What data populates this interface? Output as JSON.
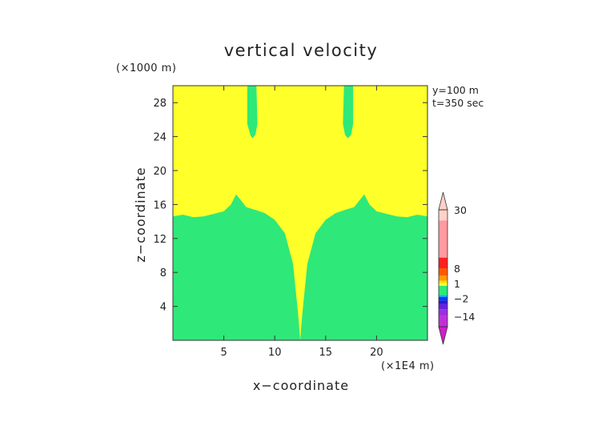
{
  "chart_data": {
    "type": "heatmap",
    "title": "vertical velocity",
    "xlabel": "x−coordinate",
    "ylabel": "z−coordinate",
    "x_unit": "(×1E4 m)",
    "y_unit": "(×1000 m)",
    "xlim": [
      0,
      25
    ],
    "ylim": [
      0,
      30
    ],
    "x_ticks": [
      5,
      10,
      15,
      20
    ],
    "y_ticks": [
      4,
      8,
      12,
      16,
      20,
      24,
      28
    ],
    "annotations": [
      "y=100 m",
      "t=350 sec"
    ],
    "field": {
      "background_color": "#ffff2a",
      "lower_region_color": "#2ee87a",
      "lower_region_top": [
        [
          0.0,
          14.6
        ],
        [
          1.0,
          14.8
        ],
        [
          2.0,
          14.5
        ],
        [
          3.0,
          14.6
        ],
        [
          4.0,
          14.9
        ],
        [
          5.0,
          15.2
        ],
        [
          5.7,
          16.0
        ],
        [
          6.2,
          17.2
        ],
        [
          6.6,
          16.6
        ],
        [
          7.2,
          15.7
        ],
        [
          8.0,
          15.4
        ],
        [
          9.0,
          15.0
        ],
        [
          10.0,
          14.2
        ],
        [
          11.0,
          12.6
        ],
        [
          11.8,
          9.0
        ],
        [
          12.3,
          3.0
        ],
        [
          12.5,
          0.0
        ],
        [
          12.7,
          3.0
        ],
        [
          13.2,
          9.0
        ],
        [
          14.0,
          12.6
        ],
        [
          15.0,
          14.2
        ],
        [
          16.0,
          15.0
        ],
        [
          17.0,
          15.4
        ],
        [
          17.8,
          15.7
        ],
        [
          18.4,
          16.6
        ],
        [
          18.8,
          17.2
        ],
        [
          19.3,
          16.0
        ],
        [
          20.0,
          15.2
        ],
        [
          21.0,
          14.9
        ],
        [
          22.0,
          14.6
        ],
        [
          23.0,
          14.5
        ],
        [
          24.0,
          14.8
        ],
        [
          25.0,
          14.6
        ]
      ],
      "islands": [
        {
          "color": "#2ee87a",
          "outline": [
            [
              7.3,
              30.0
            ],
            [
              7.3,
              25.5
            ],
            [
              7.6,
              24.2
            ],
            [
              7.8,
              23.8
            ],
            [
              8.1,
              24.2
            ],
            [
              8.3,
              25.5
            ],
            [
              8.2,
              30.0
            ]
          ]
        },
        {
          "color": "#2ee87a",
          "outline": [
            [
              16.8,
              30.0
            ],
            [
              16.7,
              25.5
            ],
            [
              16.9,
              24.2
            ],
            [
              17.2,
              23.8
            ],
            [
              17.5,
              24.2
            ],
            [
              17.7,
              25.5
            ],
            [
              17.7,
              30.0
            ]
          ]
        },
        {
          "color": "#ffff2a",
          "outline": [
            [
              11.9,
              16.9
            ],
            [
              12.2,
              16.7
            ],
            [
              12.5,
              16.9
            ],
            [
              12.8,
              16.7
            ],
            [
              13.1,
              16.9
            ],
            [
              13.0,
              15.2
            ],
            [
              12.7,
              13.5
            ],
            [
              12.5,
              12.9
            ],
            [
              12.3,
              13.5
            ],
            [
              12.0,
              15.2
            ]
          ]
        }
      ]
    },
    "colorbar": {
      "labels": [
        "30",
        "8",
        "1",
        "−2",
        "−14"
      ],
      "label_values": [
        30,
        8,
        1,
        -2,
        -14
      ],
      "segments": [
        {
          "color": "#ffd2c8",
          "lo": 26,
          "hi": 30
        },
        {
          "color": "#ff9aa0",
          "lo": 12,
          "hi": 26
        },
        {
          "color": "#ff2020",
          "lo": 8,
          "hi": 12
        },
        {
          "color": "#ff5a00",
          "lo": 5,
          "hi": 8
        },
        {
          "color": "#ff9a00",
          "lo": 3,
          "hi": 5
        },
        {
          "color": "#ffe000",
          "lo": 2,
          "hi": 3
        },
        {
          "color": "#ffff2a",
          "lo": 1,
          "hi": 2
        },
        {
          "color": "#2ee87a",
          "lo": -2,
          "hi": 1
        },
        {
          "color": "#00b4ff",
          "lo": -3,
          "hi": -2
        },
        {
          "color": "#0040ff",
          "lo": -5,
          "hi": -3
        },
        {
          "color": "#2a1ad0",
          "lo": -7,
          "hi": -5
        },
        {
          "color": "#6a20e0",
          "lo": -10,
          "hi": -7
        },
        {
          "color": "#9a30e0",
          "lo": -14,
          "hi": -10
        },
        {
          "color": "#c030d8",
          "lo": -20,
          "hi": -14
        }
      ],
      "top_arrow_color": "#ffd2c8",
      "bottom_arrow_color": "#d020c8"
    }
  }
}
